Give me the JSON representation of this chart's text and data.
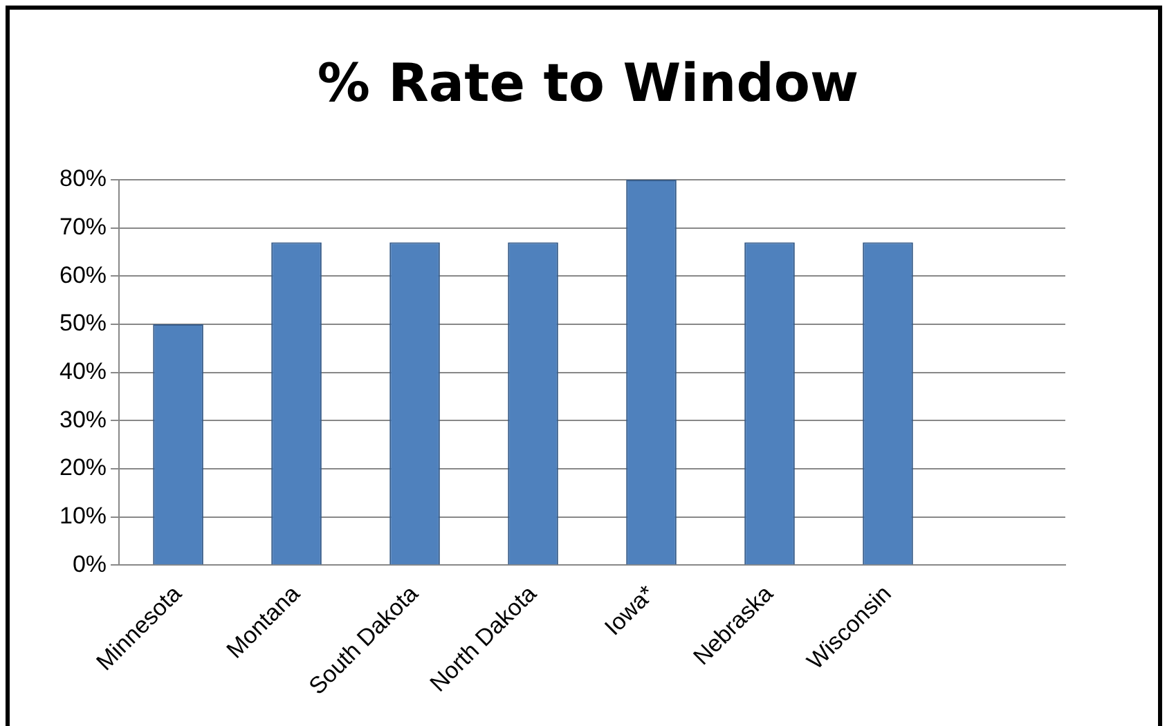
{
  "chart_data": {
    "type": "bar",
    "title": "% Rate to Window",
    "categories": [
      "Minnesota",
      "Montana",
      "South Dakota",
      "North Dakota",
      "Iowa*",
      "Nebraska",
      "Wisconsin",
      null
    ],
    "values": [
      50,
      67,
      67,
      67,
      80,
      67,
      67,
      null
    ],
    "color": "#4f81bd",
    "ylim": [
      0,
      80
    ],
    "yticks": [
      {
        "value": 0,
        "label": "0%"
      },
      {
        "value": 10,
        "label": "10%"
      },
      {
        "value": 20,
        "label": "20%"
      },
      {
        "value": 30,
        "label": "30%"
      },
      {
        "value": 40,
        "label": "40%"
      },
      {
        "value": 50,
        "label": "50%"
      },
      {
        "value": 60,
        "label": "60%"
      },
      {
        "value": 70,
        "label": "70%"
      },
      {
        "value": 80,
        "label": "80%"
      }
    ],
    "grid": "y",
    "legend": false
  }
}
